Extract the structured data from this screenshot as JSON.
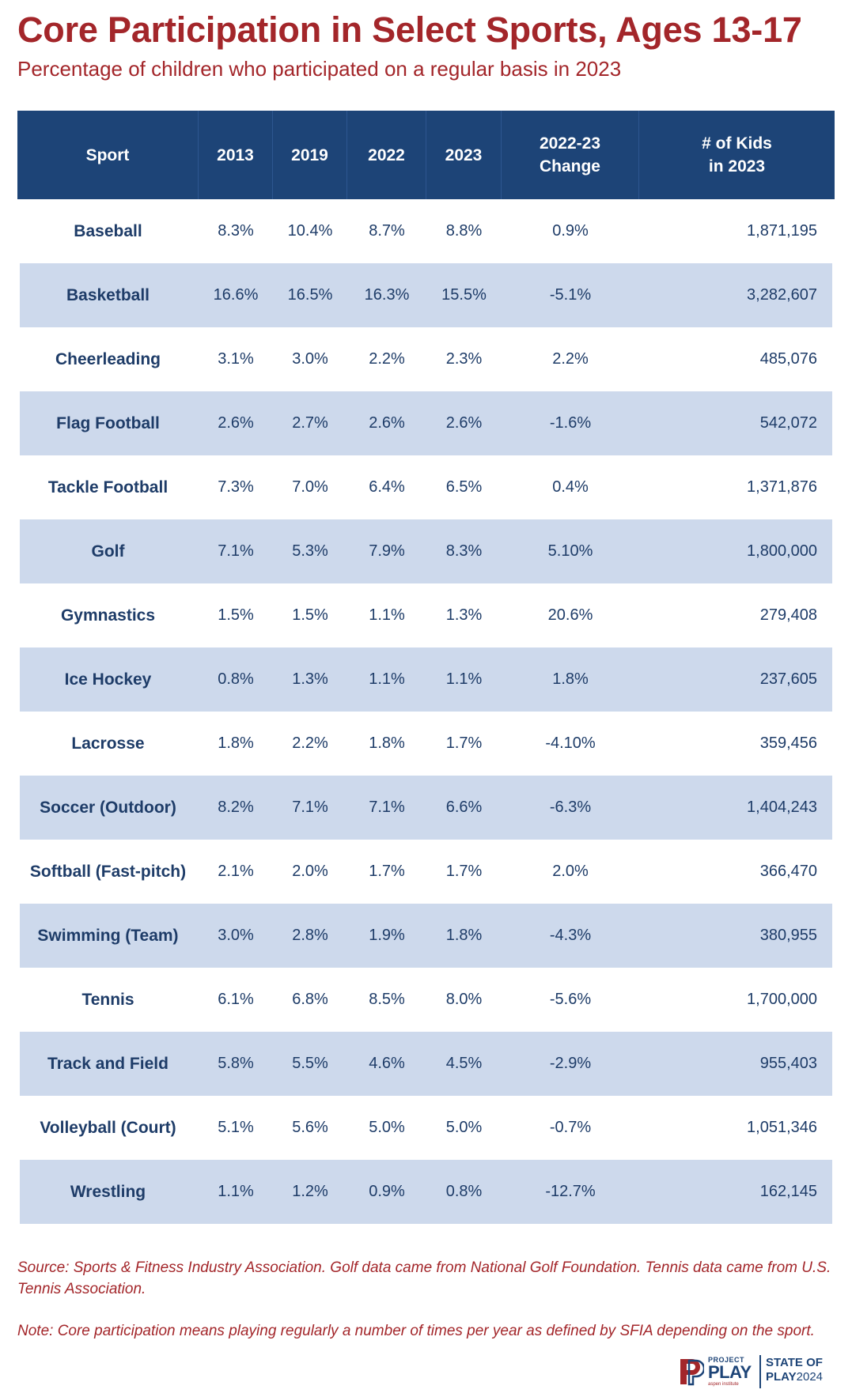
{
  "title": "Core Participation in Select Sports, Ages 13-17",
  "subtitle": "Percentage of children who participated on a regular basis in 2023",
  "colors": {
    "title_red": "#a3262a",
    "header_navy": "#1d4477",
    "row_alt_blue": "#cdd9ec",
    "cell_text": "#1e3c68"
  },
  "chart_data": {
    "type": "table",
    "columns": [
      {
        "key": "sport",
        "label": "Sport",
        "label_lines": [
          "Sport"
        ]
      },
      {
        "key": "y2013",
        "label": "2013",
        "label_lines": [
          "2013"
        ]
      },
      {
        "key": "y2019",
        "label": "2019",
        "label_lines": [
          "2019"
        ]
      },
      {
        "key": "y2022",
        "label": "2022",
        "label_lines": [
          "2022"
        ]
      },
      {
        "key": "y2023",
        "label": "2023",
        "label_lines": [
          "2023"
        ]
      },
      {
        "key": "change",
        "label": "2022-23 Change",
        "label_lines": [
          "2022-23",
          "Change"
        ]
      },
      {
        "key": "kids",
        "label": "# of Kids in 2023",
        "label_lines": [
          "# of Kids",
          "in 2023"
        ]
      }
    ],
    "rows": [
      {
        "sport": "Baseball",
        "y2013": "8.3%",
        "y2019": "10.4%",
        "y2022": "8.7%",
        "y2023": "8.8%",
        "change": "0.9%",
        "kids": "1,871,195"
      },
      {
        "sport": "Basketball",
        "y2013": "16.6%",
        "y2019": "16.5%",
        "y2022": "16.3%",
        "y2023": "15.5%",
        "change": "-5.1%",
        "kids": "3,282,607"
      },
      {
        "sport": "Cheerleading",
        "y2013": "3.1%",
        "y2019": "3.0%",
        "y2022": "2.2%",
        "y2023": "2.3%",
        "change": "2.2%",
        "kids": "485,076"
      },
      {
        "sport": "Flag Football",
        "y2013": "2.6%",
        "y2019": "2.7%",
        "y2022": "2.6%",
        "y2023": "2.6%",
        "change": "-1.6%",
        "kids": "542,072"
      },
      {
        "sport": "Tackle Football",
        "y2013": "7.3%",
        "y2019": "7.0%",
        "y2022": "6.4%",
        "y2023": "6.5%",
        "change": "0.4%",
        "kids": "1,371,876"
      },
      {
        "sport": "Golf",
        "y2013": "7.1%",
        "y2019": "5.3%",
        "y2022": "7.9%",
        "y2023": "8.3%",
        "change": "5.10%",
        "kids": "1,800,000"
      },
      {
        "sport": "Gymnastics",
        "y2013": "1.5%",
        "y2019": "1.5%",
        "y2022": "1.1%",
        "y2023": "1.3%",
        "change": "20.6%",
        "kids": "279,408"
      },
      {
        "sport": "Ice Hockey",
        "y2013": "0.8%",
        "y2019": "1.3%",
        "y2022": "1.1%",
        "y2023": "1.1%",
        "change": "1.8%",
        "kids": "237,605"
      },
      {
        "sport": "Lacrosse",
        "y2013": "1.8%",
        "y2019": "2.2%",
        "y2022": "1.8%",
        "y2023": "1.7%",
        "change": "-4.10%",
        "kids": "359,456"
      },
      {
        "sport": "Soccer (Outdoor)",
        "y2013": "8.2%",
        "y2019": "7.1%",
        "y2022": "7.1%",
        "y2023": "6.6%",
        "change": "-6.3%",
        "kids": "1,404,243"
      },
      {
        "sport": "Softball (Fast-pitch)",
        "y2013": "2.1%",
        "y2019": "2.0%",
        "y2022": "1.7%",
        "y2023": "1.7%",
        "change": "2.0%",
        "kids": "366,470"
      },
      {
        "sport": "Swimming (Team)",
        "y2013": "3.0%",
        "y2019": "2.8%",
        "y2022": "1.9%",
        "y2023": "1.8%",
        "change": "-4.3%",
        "kids": "380,955"
      },
      {
        "sport": "Tennis",
        "y2013": "6.1%",
        "y2019": "6.8%",
        "y2022": "8.5%",
        "y2023": "8.0%",
        "change": "-5.6%",
        "kids": "1,700,000"
      },
      {
        "sport": "Track and Field",
        "y2013": "5.8%",
        "y2019": "5.5%",
        "y2022": "4.6%",
        "y2023": "4.5%",
        "change": "-2.9%",
        "kids": "955,403"
      },
      {
        "sport": "Volleyball (Court)",
        "y2013": "5.1%",
        "y2019": "5.6%",
        "y2022": "5.0%",
        "y2023": "5.0%",
        "change": "-0.7%",
        "kids": "1,051,346"
      },
      {
        "sport": "Wrestling",
        "y2013": "1.1%",
        "y2019": "1.2%",
        "y2022": "0.9%",
        "y2023": "0.8%",
        "change": "-12.7%",
        "kids": "162,145"
      }
    ]
  },
  "source": "Source: Sports & Fitness Industry Association. Golf data came from National Golf Foundation. Tennis data came from U.S. Tennis Association.",
  "note": "Note: Core participation means playing regularly a number of times per year as defined by SFIA depending on the sport.",
  "logo": {
    "project": "PROJECT",
    "play": "PLAY",
    "aspen": "aspen institute",
    "state_of": "STATE OF",
    "play2": "PLAY",
    "year": "2024"
  }
}
